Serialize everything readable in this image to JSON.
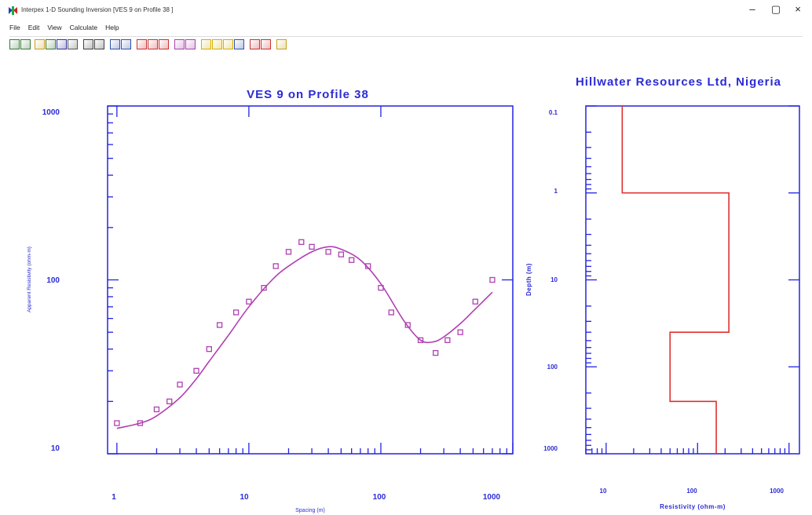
{
  "window": {
    "title": "Interpex 1-D Sounding Inversion [VES 9 on Profile 38 ]",
    "minimize": "–",
    "maximize": "▢",
    "close": "×"
  },
  "menu": [
    "File",
    "Edit",
    "View",
    "Calculate",
    "Help"
  ],
  "toolbar": {
    "buttons": [
      {
        "icon": "open-icon",
        "color": "#3c7a3c"
      },
      {
        "icon": "open2-icon",
        "color": "#3c7a3c"
      },
      {
        "icon": "folder-icon",
        "color": "#c8a020"
      },
      {
        "icon": "save-icon",
        "color": "#3a7a3a"
      },
      {
        "icon": "floppy-icon",
        "color": "#333399"
      },
      {
        "icon": "print-icon",
        "color": "#555555"
      },
      {
        "icon": "grid-icon",
        "color": "#444444"
      },
      {
        "icon": "grid2-icon",
        "color": "#444444"
      },
      {
        "icon": "window-icon",
        "color": "#3355aa"
      },
      {
        "icon": "window2-icon",
        "color": "#3355aa"
      },
      {
        "icon": "chart-icon",
        "color": "#cc3333"
      },
      {
        "icon": "chart2-icon",
        "color": "#cc3333"
      },
      {
        "icon": "chart3-icon",
        "color": "#cc3333"
      },
      {
        "icon": "edit-icon",
        "color": "#aa44aa"
      },
      {
        "icon": "edit2-icon",
        "color": "#aa44aa"
      },
      {
        "icon": "layers-icon",
        "color": "#d4b000"
      },
      {
        "icon": "layers2-icon",
        "color": "#d4b000"
      },
      {
        "icon": "layers3-icon",
        "color": "#d4b000"
      },
      {
        "icon": "model-icon",
        "color": "#3355aa"
      },
      {
        "icon": "model2-icon",
        "color": "#cc3333"
      },
      {
        "icon": "model3-icon",
        "color": "#cc3333"
      },
      {
        "icon": "help-icon",
        "color": "#c8a020"
      }
    ]
  },
  "colors": {
    "axis": "#2323e0",
    "title": "#2b2bd6",
    "data": "#b040b0",
    "model": "#e03030"
  },
  "sounding_chart": {
    "title": "VES 9 on Profile 38",
    "xlabel": "Spacing (m)",
    "ylabel": "Apparent Resistivity (ohm-m)",
    "x_ticks": [
      "1",
      "10",
      "100",
      "1000"
    ],
    "y_ticks": [
      "1000",
      "100",
      "10"
    ]
  },
  "model_chart": {
    "title": "Hillwater Resources Ltd, Nigeria",
    "xlabel": "Resistivity (ohm-m)",
    "ylabel": "Depth (m)",
    "x_ticks": [
      "10",
      "100",
      "1000"
    ],
    "y_ticks": [
      "0.1",
      "1",
      "10",
      "100",
      "1000"
    ]
  },
  "chart_data": [
    {
      "type": "scatter",
      "title": "VES 9 on Profile 38",
      "xlabel": "Spacing (m)",
      "ylabel": "Apparent Resistivity (ohm-m)",
      "xscale": "log",
      "yscale": "log",
      "xlim": [
        0.85,
        1000
      ],
      "ylim": [
        10,
        1000
      ],
      "series": [
        {
          "marker": "square",
          "x": [
            1,
            1.5,
            2,
            2.5,
            3,
            4,
            5,
            6,
            8,
            10,
            13,
            16,
            20,
            25,
            30,
            40,
            50,
            60,
            80,
            100,
            120,
            160,
            200,
            260,
            320,
            400,
            520,
            700
          ],
          "y": [
            15,
            15,
            18,
            20,
            25,
            30,
            40,
            55,
            65,
            75,
            90,
            120,
            145,
            165,
            155,
            145,
            140,
            130,
            120,
            90,
            65,
            55,
            45,
            38,
            45,
            50,
            75,
            100
          ]
        },
        {
          "marker": "line",
          "x": [
            1,
            1.5,
            2,
            3,
            4,
            5,
            7,
            10,
            15,
            20,
            30,
            40,
            50,
            70,
            100,
            150,
            200,
            250,
            300,
            400,
            500,
            700
          ],
          "y": [
            14,
            15,
            16.5,
            21,
            27,
            34,
            48,
            70,
            100,
            120,
            145,
            155,
            150,
            130,
            95,
            58,
            45,
            44,
            47,
            56,
            66,
            85
          ]
        }
      ]
    },
    {
      "type": "line",
      "title": "Hillwater Resources Ltd, Nigeria",
      "xlabel": "Resistivity (ohm-m)",
      "ylabel": "Depth (m)",
      "xscale": "log",
      "yscale": "log",
      "xlim": [
        6,
        1300
      ],
      "ylim": [
        0.1,
        1000
      ],
      "layers": [
        {
          "resistivity": 15,
          "top": 0.1,
          "bottom": 1
        },
        {
          "resistivity": 220,
          "top": 1,
          "bottom": 40
        },
        {
          "resistivity": 50,
          "top": 40,
          "bottom": 250
        },
        {
          "resistivity": 160,
          "top": 250,
          "bottom": 1000
        }
      ]
    }
  ]
}
